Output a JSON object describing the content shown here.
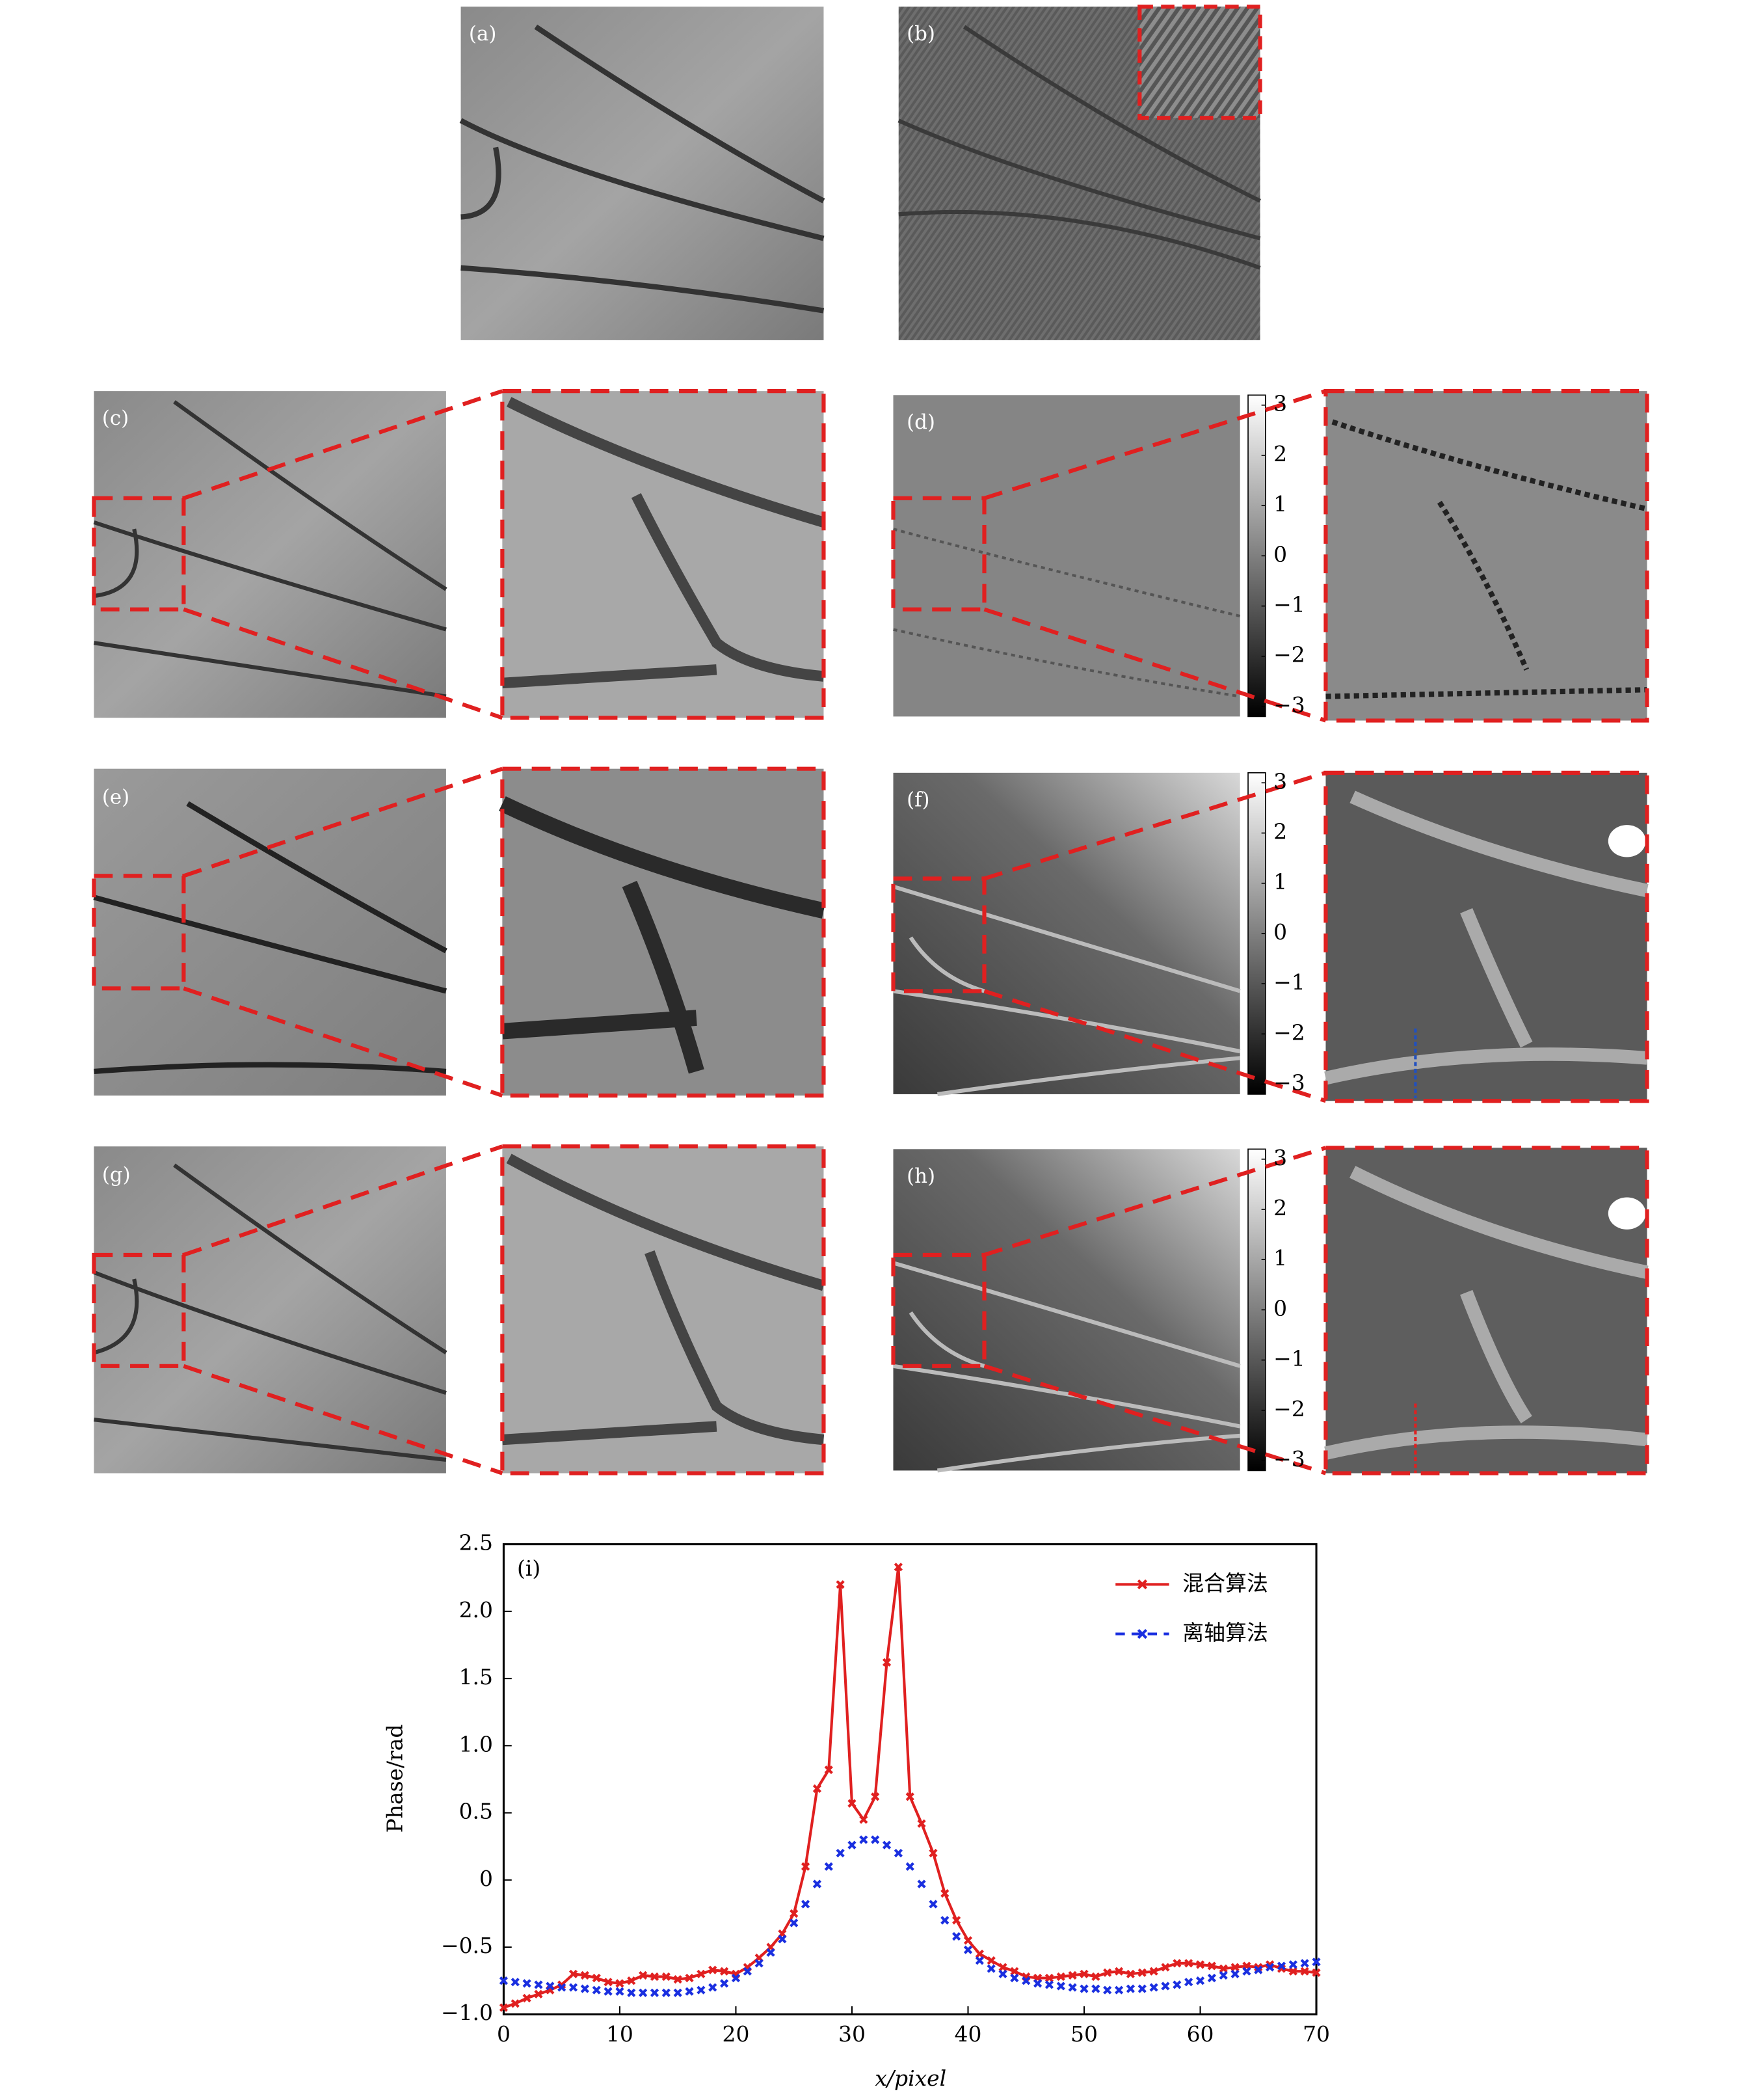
{
  "image_panels": {
    "labels": [
      "(a)",
      "(b)",
      "(c)",
      "(d)",
      "(e)",
      "(f)",
      "(g)",
      "(h)"
    ]
  },
  "colorbars": [
    {
      "ticks": [
        3,
        2,
        1,
        0,
        {
          "value": -1,
          "label": "−1"
        },
        {
          "value": -2,
          "label": "−2"
        },
        {
          "value": -3,
          "label": "−3"
        }
      ]
    },
    {
      "ticks": [
        3,
        2,
        1,
        0,
        {
          "value": -1,
          "label": "−1"
        },
        {
          "value": -2,
          "label": "−2"
        },
        {
          "value": -3,
          "label": "−3"
        }
      ]
    },
    {
      "ticks": [
        3,
        2,
        1,
        0,
        {
          "value": -1,
          "label": "−1"
        },
        {
          "value": -2,
          "label": "−2"
        },
        {
          "value": -3,
          "label": "−3"
        }
      ]
    }
  ],
  "chart_data": {
    "type": "line",
    "panel_label": "(i)",
    "x_label": "x/pixel",
    "y_label": "Phase/rad",
    "x": [
      0,
      1,
      2,
      3,
      4,
      5,
      6,
      7,
      8,
      9,
      10,
      11,
      12,
      13,
      14,
      15,
      16,
      17,
      18,
      19,
      20,
      21,
      22,
      23,
      24,
      25,
      26,
      27,
      28,
      29,
      30,
      31,
      32,
      33,
      34,
      35,
      36,
      37,
      38,
      39,
      40,
      41,
      42,
      43,
      44,
      45,
      46,
      47,
      48,
      49,
      50,
      51,
      52,
      53,
      54,
      55,
      56,
      57,
      58,
      59,
      60,
      61,
      62,
      63,
      64,
      65,
      66,
      67,
      68,
      69,
      70
    ],
    "series": [
      {
        "name": "混合算法",
        "color": "#e02020",
        "dashed": false,
        "values": [
          -0.95,
          -0.92,
          -0.88,
          -0.85,
          -0.82,
          -0.78,
          -0.7,
          -0.71,
          -0.73,
          -0.76,
          -0.77,
          -0.75,
          -0.71,
          -0.72,
          -0.72,
          -0.74,
          -0.73,
          -0.7,
          -0.67,
          -0.68,
          -0.7,
          -0.65,
          -0.58,
          -0.5,
          -0.4,
          -0.25,
          0.1,
          0.68,
          0.82,
          2.2,
          0.57,
          0.45,
          0.62,
          1.62,
          2.33,
          0.62,
          0.42,
          0.2,
          -0.1,
          -0.3,
          -0.45,
          -0.55,
          -0.6,
          -0.65,
          -0.68,
          -0.72,
          -0.73,
          -0.73,
          -0.72,
          -0.71,
          -0.7,
          -0.72,
          -0.69,
          -0.68,
          -0.7,
          -0.69,
          -0.68,
          -0.65,
          -0.62,
          -0.62,
          -0.63,
          -0.64,
          -0.66,
          -0.65,
          -0.64,
          -0.65,
          -0.63,
          -0.66,
          -0.68,
          -0.68,
          -0.69
        ]
      },
      {
        "name": "离轴算法",
        "color": "#1a2fe0",
        "dashed": true,
        "values": [
          -0.75,
          -0.76,
          -0.77,
          -0.78,
          -0.79,
          -0.8,
          -0.8,
          -0.81,
          -0.82,
          -0.83,
          -0.83,
          -0.84,
          -0.84,
          -0.84,
          -0.84,
          -0.84,
          -0.83,
          -0.82,
          -0.8,
          -0.77,
          -0.73,
          -0.68,
          -0.62,
          -0.54,
          -0.44,
          -0.32,
          -0.18,
          -0.03,
          0.1,
          0.2,
          0.26,
          0.3,
          0.3,
          0.26,
          0.2,
          0.1,
          -0.03,
          -0.18,
          -0.3,
          -0.42,
          -0.52,
          -0.6,
          -0.66,
          -0.7,
          -0.73,
          -0.75,
          -0.77,
          -0.78,
          -0.79,
          -0.8,
          -0.81,
          -0.81,
          -0.82,
          -0.82,
          -0.81,
          -0.81,
          -0.8,
          -0.79,
          -0.78,
          -0.76,
          -0.75,
          -0.73,
          -0.71,
          -0.7,
          -0.68,
          -0.67,
          -0.65,
          -0.64,
          -0.63,
          -0.62,
          -0.61
        ]
      }
    ],
    "xlim": [
      0,
      70
    ],
    "ylim": [
      -1.0,
      2.5
    ],
    "xticks": [
      0,
      10,
      20,
      30,
      40,
      50,
      60,
      70
    ],
    "yticks": [
      {
        "value": -1.0,
        "label": "−1.0"
      },
      {
        "value": -0.5,
        "label": "−0.5"
      },
      0,
      0.5,
      {
        "value": 1.0,
        "label": "1.0"
      },
      1.5,
      {
        "value": 2.0,
        "label": "2.0"
      },
      2.5
    ],
    "legend": "upper right",
    "grid": false
  }
}
